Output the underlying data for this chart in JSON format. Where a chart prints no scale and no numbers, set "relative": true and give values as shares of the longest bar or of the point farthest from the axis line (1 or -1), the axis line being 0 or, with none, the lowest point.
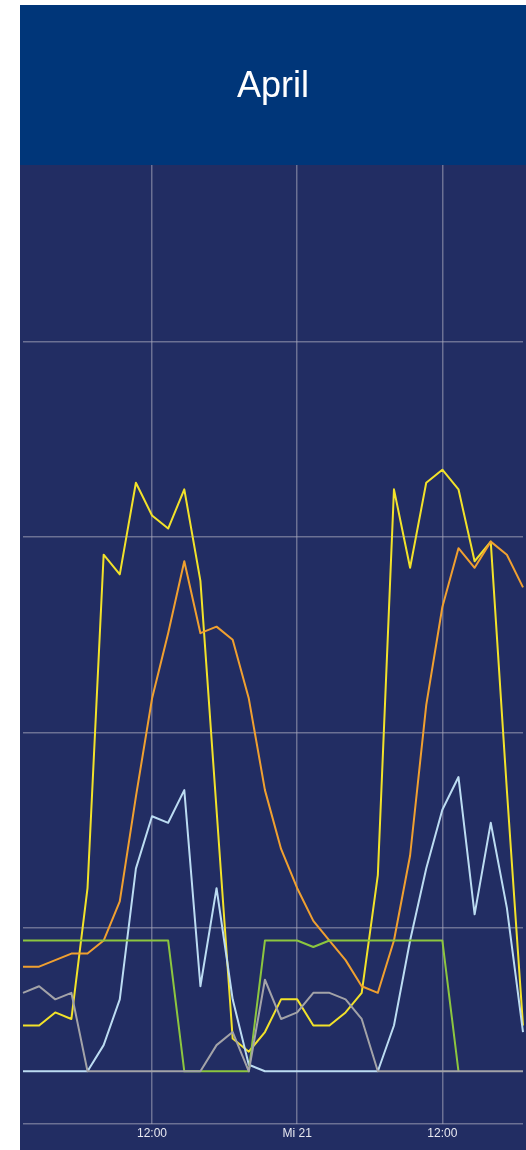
{
  "chart_data": {
    "type": "line",
    "title": "April",
    "relative": true,
    "grid": true,
    "legend": false,
    "marker": "none",
    "categories": [
      null,
      null,
      null,
      null,
      null,
      null,
      null,
      null,
      "12:00",
      null,
      null,
      null,
      null,
      null,
      null,
      null,
      null,
      "Mi 21",
      null,
      null,
      null,
      null,
      null,
      null,
      null,
      null,
      "12:00",
      null,
      null,
      null,
      null,
      null
    ],
    "series": [
      {
        "color": "#a3a3a8",
        "values": [
          0.2,
          0.21,
          0.19,
          0.2,
          0.08,
          0.08,
          0.08,
          0.08,
          0.08,
          0.08,
          0.08,
          0.08,
          0.12,
          0.14,
          0.08,
          0.22,
          0.16,
          0.17,
          0.2,
          0.2,
          0.19,
          0.16,
          0.08,
          0.08,
          0.08,
          0.08,
          0.08,
          0.08,
          0.08,
          0.08,
          0.08,
          0.08
        ]
      },
      {
        "color": "#8cc63f",
        "values": [
          0.28,
          0.28,
          0.28,
          0.28,
          0.28,
          0.28,
          0.28,
          0.28,
          0.28,
          0.28,
          0.08,
          0.08,
          0.08,
          0.08,
          0.08,
          0.28,
          0.28,
          0.28,
          0.27,
          0.28,
          0.28,
          0.28,
          0.28,
          0.28,
          0.28,
          0.28,
          0.28,
          0.08,
          null,
          null,
          null,
          null
        ]
      },
      {
        "color": "#bcdcf2",
        "values": [
          0.08,
          0.08,
          0.08,
          0.08,
          0.08,
          0.12,
          0.19,
          0.39,
          0.47,
          0.46,
          0.51,
          0.21,
          0.36,
          0.19,
          0.09,
          0.08,
          0.08,
          0.08,
          0.08,
          0.08,
          0.08,
          0.08,
          0.08,
          0.15,
          0.28,
          0.39,
          0.48,
          0.53,
          0.32,
          0.46,
          0.33,
          0.14
        ]
      },
      {
        "color": "#f0a030",
        "values": [
          0.24,
          0.24,
          0.25,
          0.26,
          0.26,
          0.28,
          0.34,
          0.5,
          0.65,
          0.75,
          0.86,
          0.75,
          0.76,
          0.74,
          0.65,
          0.51,
          0.42,
          0.36,
          0.31,
          0.28,
          0.25,
          0.21,
          0.2,
          0.28,
          0.41,
          0.64,
          0.79,
          0.88,
          0.85,
          0.89,
          0.87,
          0.82
        ]
      },
      {
        "color": "#f2e22a",
        "values": [
          0.15,
          0.15,
          0.17,
          0.16,
          0.36,
          0.87,
          0.84,
          0.98,
          0.93,
          0.91,
          0.97,
          0.83,
          0.48,
          0.13,
          0.11,
          0.14,
          0.19,
          0.19,
          0.15,
          0.15,
          0.17,
          0.2,
          0.38,
          0.97,
          0.85,
          0.98,
          1,
          0.97,
          0.86,
          0.89,
          0.51,
          0.15
        ]
      }
    ]
  }
}
